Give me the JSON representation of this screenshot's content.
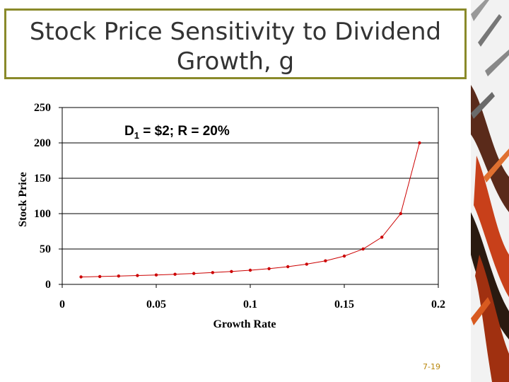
{
  "slide": {
    "title_line1": "Stock Price Sensitivity to Dividend",
    "title_line2": "Growth, g",
    "page_number": "7-19"
  },
  "colors": {
    "series": "#cc0000",
    "title_border": "#8a8a2a",
    "grid": "#000000"
  },
  "chart_data": {
    "type": "line",
    "title": "",
    "annotation": {
      "prefix": "D",
      "subscript": "1",
      "suffix": " = $2; R = 20%"
    },
    "xlabel": "Growth Rate",
    "ylabel": "Stock Price",
    "xlim": [
      0,
      0.2
    ],
    "ylim": [
      0,
      250
    ],
    "xticks": [
      "0",
      "0.05",
      "0.1",
      "0.15",
      "0.2"
    ],
    "yticks": [
      "0",
      "50",
      "100",
      "150",
      "200",
      "250"
    ],
    "grid": "horizontal",
    "legend": "none",
    "series": [
      {
        "x": [
          0.01,
          0.02,
          0.03,
          0.04,
          0.05,
          0.06,
          0.07,
          0.08,
          0.09,
          0.1,
          0.11,
          0.12,
          0.13,
          0.14,
          0.15,
          0.16,
          0.17,
          0.18,
          0.19
        ],
        "y": [
          10.53,
          11.11,
          11.76,
          12.5,
          13.33,
          14.29,
          15.38,
          16.67,
          18.18,
          20.0,
          22.22,
          25.0,
          28.57,
          33.33,
          40.0,
          50.0,
          66.67,
          100.0,
          200.0
        ]
      }
    ]
  }
}
